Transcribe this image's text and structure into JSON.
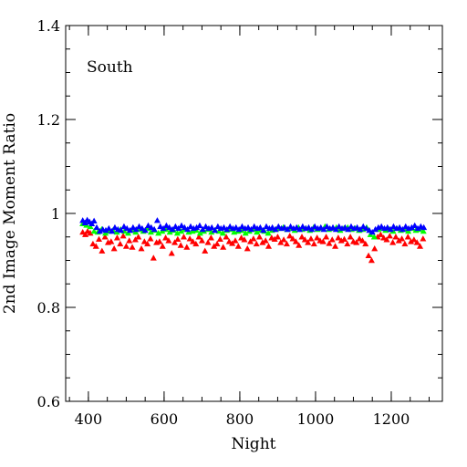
{
  "chart_data": {
    "type": "scatter",
    "annotation": "South",
    "xlabel": "Night",
    "ylabel": "2nd Image Moment Ratio",
    "xlim": [
      340,
      1335
    ],
    "ylim": [
      0.6,
      1.4
    ],
    "x_ticks": [
      400,
      600,
      800,
      1000,
      1200
    ],
    "x_tick_labels": [
      "400",
      "600",
      "800",
      "1000",
      "1200"
    ],
    "x_minor_step": 50,
    "y_ticks": [
      0.6,
      0.8,
      1.0,
      1.2,
      1.4
    ],
    "y_tick_labels": [
      "0.6",
      "0.8",
      "1",
      "1.2",
      "1.4"
    ],
    "y_minor_step": 0.05,
    "grid": false,
    "marker": "triangle",
    "series": [
      {
        "color": "#ff0000",
        "x": [
          385,
          392,
          398,
          405,
          412,
          420,
          428,
          436,
          444,
          452,
          460,
          468,
          476,
          484,
          492,
          500,
          508,
          516,
          524,
          532,
          540,
          548,
          556,
          564,
          572,
          580,
          588,
          596,
          604,
          612,
          620,
          628,
          636,
          644,
          652,
          660,
          668,
          676,
          684,
          692,
          700,
          708,
          716,
          724,
          732,
          740,
          748,
          756,
          764,
          772,
          780,
          788,
          796,
          804,
          812,
          820,
          828,
          836,
          844,
          852,
          860,
          868,
          876,
          884,
          892,
          900,
          908,
          916,
          924,
          932,
          940,
          948,
          956,
          964,
          972,
          980,
          988,
          996,
          1004,
          1012,
          1020,
          1028,
          1036,
          1044,
          1052,
          1060,
          1068,
          1076,
          1084,
          1092,
          1100,
          1108,
          1116,
          1124,
          1132,
          1140,
          1148,
          1156,
          1164,
          1172,
          1180,
          1188,
          1196,
          1204,
          1212,
          1220,
          1228,
          1236,
          1244,
          1252,
          1260,
          1268,
          1276,
          1284
        ],
        "y": [
          0.96,
          0.955,
          0.962,
          0.958,
          0.935,
          0.93,
          0.945,
          0.92,
          0.95,
          0.938,
          0.94,
          0.925,
          0.948,
          0.935,
          0.952,
          0.93,
          0.942,
          0.928,
          0.944,
          0.95,
          0.925,
          0.94,
          0.935,
          0.946,
          0.905,
          0.938,
          0.94,
          0.93,
          0.948,
          0.942,
          0.915,
          0.938,
          0.945,
          0.932,
          0.95,
          0.928,
          0.946,
          0.94,
          0.935,
          0.95,
          0.942,
          0.92,
          0.938,
          0.948,
          0.93,
          0.935,
          0.945,
          0.928,
          0.95,
          0.94,
          0.936,
          0.942,
          0.93,
          0.948,
          0.944,
          0.925,
          0.94,
          0.946,
          0.935,
          0.95,
          0.938,
          0.942,
          0.93,
          0.948,
          0.945,
          0.95,
          0.938,
          0.944,
          0.935,
          0.952,
          0.946,
          0.94,
          0.932,
          0.95,
          0.944,
          0.938,
          0.946,
          0.935,
          0.948,
          0.942,
          0.94,
          0.95,
          0.936,
          0.944,
          0.93,
          0.948,
          0.942,
          0.945,
          0.935,
          0.95,
          0.94,
          0.938,
          0.946,
          0.942,
          0.935,
          0.91,
          0.9,
          0.925,
          0.95,
          0.955,
          0.948,
          0.944,
          0.952,
          0.938,
          0.95,
          0.942,
          0.946,
          0.935,
          0.95,
          0.94,
          0.944,
          0.938,
          0.93,
          0.946
        ]
      },
      {
        "color": "#00ff00",
        "x": [
          385,
          395,
          405,
          415,
          425,
          435,
          445,
          455,
          465,
          475,
          485,
          495,
          505,
          515,
          525,
          535,
          545,
          555,
          565,
          575,
          585,
          595,
          605,
          615,
          625,
          635,
          645,
          655,
          665,
          675,
          685,
          695,
          705,
          715,
          725,
          735,
          745,
          755,
          765,
          775,
          785,
          795,
          805,
          815,
          825,
          835,
          845,
          855,
          865,
          875,
          885,
          895,
          905,
          915,
          925,
          935,
          945,
          955,
          965,
          975,
          985,
          995,
          1005,
          1015,
          1025,
          1035,
          1045,
          1055,
          1065,
          1075,
          1085,
          1095,
          1105,
          1115,
          1125,
          1135,
          1145,
          1155,
          1165,
          1175,
          1185,
          1195,
          1205,
          1215,
          1225,
          1235,
          1245,
          1255,
          1265,
          1275,
          1285
        ],
        "y": [
          0.978,
          0.975,
          0.972,
          0.962,
          0.96,
          0.966,
          0.958,
          0.962,
          0.964,
          0.96,
          0.966,
          0.962,
          0.958,
          0.964,
          0.96,
          0.966,
          0.962,
          0.968,
          0.96,
          0.964,
          0.958,
          0.962,
          0.966,
          0.96,
          0.964,
          0.958,
          0.962,
          0.966,
          0.96,
          0.962,
          0.964,
          0.958,
          0.962,
          0.966,
          0.96,
          0.964,
          0.962,
          0.958,
          0.964,
          0.966,
          0.96,
          0.962,
          0.964,
          0.958,
          0.962,
          0.966,
          0.96,
          0.964,
          0.962,
          0.958,
          0.964,
          0.966,
          0.968,
          0.97,
          0.966,
          0.968,
          0.964,
          0.97,
          0.966,
          0.968,
          0.964,
          0.97,
          0.966,
          0.968,
          0.972,
          0.966,
          0.968,
          0.97,
          0.964,
          0.968,
          0.97,
          0.966,
          0.968,
          0.964,
          0.966,
          0.97,
          0.955,
          0.95,
          0.966,
          0.968,
          0.964,
          0.966,
          0.962,
          0.968,
          0.964,
          0.966,
          0.962,
          0.968,
          0.964,
          0.966,
          0.962
        ]
      },
      {
        "color": "#0000ff",
        "x": [
          385,
          391,
          397,
          403,
          409,
          415,
          422,
          430,
          438,
          446,
          454,
          462,
          470,
          478,
          486,
          494,
          502,
          510,
          518,
          526,
          534,
          542,
          550,
          558,
          566,
          574,
          582,
          590,
          598,
          606,
          614,
          622,
          630,
          638,
          646,
          654,
          662,
          670,
          678,
          686,
          694,
          702,
          710,
          718,
          726,
          734,
          742,
          750,
          758,
          766,
          774,
          782,
          790,
          798,
          806,
          814,
          822,
          830,
          838,
          846,
          854,
          862,
          870,
          878,
          886,
          894,
          902,
          910,
          918,
          926,
          934,
          942,
          950,
          958,
          966,
          974,
          982,
          990,
          998,
          1006,
          1014,
          1022,
          1030,
          1038,
          1046,
          1054,
          1062,
          1070,
          1078,
          1086,
          1094,
          1102,
          1110,
          1118,
          1126,
          1134,
          1142,
          1150,
          1158,
          1166,
          1174,
          1182,
          1190,
          1198,
          1206,
          1214,
          1222,
          1230,
          1238,
          1246,
          1254,
          1262,
          1270,
          1278,
          1286
        ],
        "y": [
          0.985,
          0.98,
          0.986,
          0.982,
          0.978,
          0.984,
          0.97,
          0.962,
          0.966,
          0.964,
          0.968,
          0.962,
          0.97,
          0.966,
          0.964,
          0.972,
          0.968,
          0.964,
          0.97,
          0.966,
          0.972,
          0.968,
          0.964,
          0.974,
          0.97,
          0.966,
          0.985,
          0.972,
          0.968,
          0.974,
          0.97,
          0.966,
          0.972,
          0.968,
          0.974,
          0.97,
          0.966,
          0.972,
          0.968,
          0.97,
          0.974,
          0.966,
          0.972,
          0.968,
          0.97,
          0.964,
          0.972,
          0.968,
          0.97,
          0.966,
          0.972,
          0.968,
          0.97,
          0.966,
          0.972,
          0.968,
          0.97,
          0.966,
          0.972,
          0.968,
          0.97,
          0.964,
          0.972,
          0.968,
          0.97,
          0.966,
          0.972,
          0.968,
          0.97,
          0.966,
          0.972,
          0.968,
          0.97,
          0.966,
          0.972,
          0.968,
          0.97,
          0.966,
          0.972,
          0.968,
          0.97,
          0.966,
          0.972,
          0.968,
          0.97,
          0.966,
          0.972,
          0.968,
          0.97,
          0.966,
          0.972,
          0.968,
          0.97,
          0.966,
          0.972,
          0.968,
          0.964,
          0.96,
          0.966,
          0.97,
          0.972,
          0.968,
          0.97,
          0.966,
          0.972,
          0.968,
          0.97,
          0.966,
          0.972,
          0.968,
          0.97,
          0.974,
          0.968,
          0.972,
          0.97
        ]
      }
    ]
  }
}
